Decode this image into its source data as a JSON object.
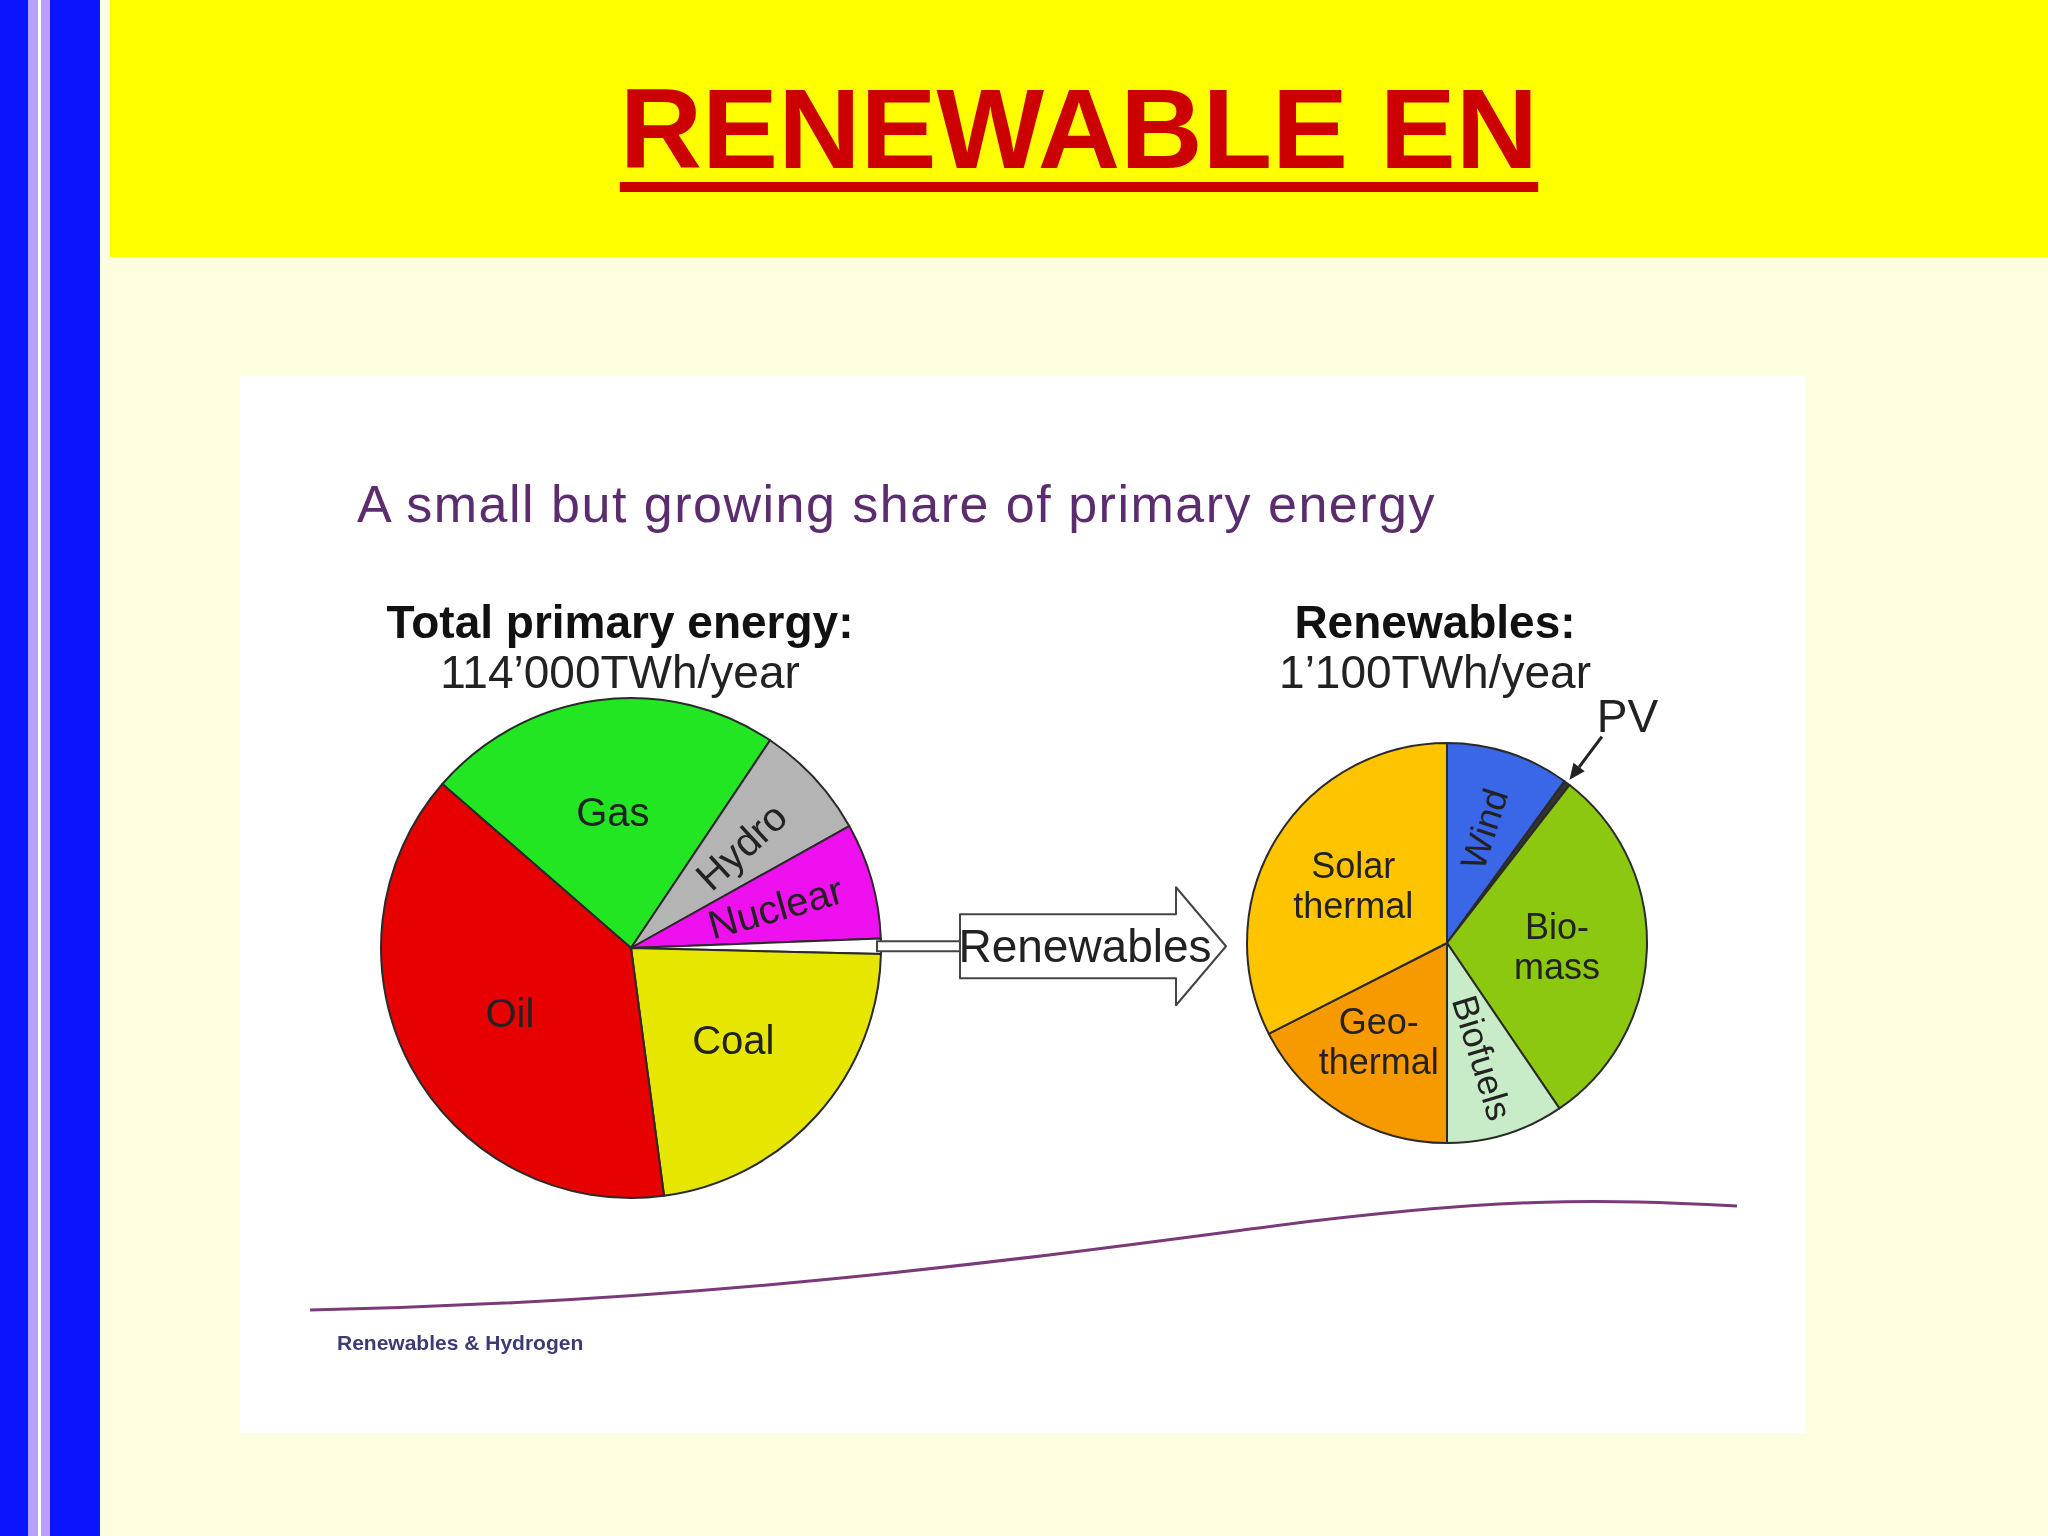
{
  "chart_data": [
    {
      "type": "pie",
      "title": "Total primary energy:",
      "subtitle": "114’000TWh/year",
      "categories": [
        "Gas",
        "Hydro",
        "Nuclear",
        "Renewables",
        "Coal",
        "Oil"
      ],
      "values": [
        23,
        7.5,
        7.5,
        1,
        22.5,
        38.5
      ],
      "colors": [
        "#22e622",
        "#b4b4b4",
        "#ee10ee",
        "#ffffff",
        "#e6e600",
        "#e60000"
      ],
      "annotations": [
        "RENEWABLE EN",
        "A small but growing share of primary energy",
        "Renewables & Hydrogen"
      ]
    },
    {
      "type": "pie",
      "title": "Renewables:",
      "subtitle": "1’100TWh/year",
      "categories": [
        "Wind",
        "PV",
        "Bio-mass",
        "Biofuels",
        "Geo-thermal",
        "Solar thermal"
      ],
      "values": [
        10,
        0.5,
        30,
        9.5,
        17.5,
        32.5
      ],
      "colors": [
        "#3a66e8",
        "#333333",
        "#8cc810",
        "#c8ecc8",
        "#f79a00",
        "#ffc400"
      ]
    }
  ]
}
